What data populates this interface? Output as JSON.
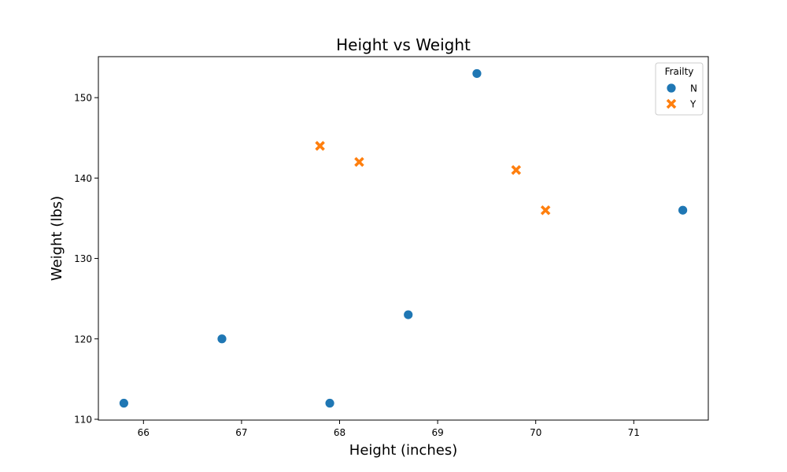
{
  "chart_data": {
    "type": "scatter",
    "title": "Height vs Weight",
    "xlabel": "Height (inches)",
    "ylabel": "Weight (lbs)",
    "xlim": [
      65.54,
      71.76
    ],
    "ylim": [
      109.9,
      155.1
    ],
    "xticks": [
      66,
      67,
      68,
      69,
      70,
      71
    ],
    "yticks": [
      110,
      120,
      130,
      140,
      150
    ],
    "grid": false,
    "legend": {
      "title": "Frailty",
      "placement": "top-right"
    },
    "series": [
      {
        "name": "N",
        "marker": "circle",
        "color": "#1f77b4",
        "points": [
          {
            "x": 65.8,
            "y": 112
          },
          {
            "x": 66.8,
            "y": 120
          },
          {
            "x": 67.9,
            "y": 112
          },
          {
            "x": 68.7,
            "y": 123
          },
          {
            "x": 69.4,
            "y": 153
          },
          {
            "x": 71.5,
            "y": 136
          }
        ]
      },
      {
        "name": "Y",
        "marker": "x",
        "color": "#ff7f0e",
        "points": [
          {
            "x": 67.8,
            "y": 144
          },
          {
            "x": 68.2,
            "y": 142
          },
          {
            "x": 69.8,
            "y": 141
          },
          {
            "x": 70.1,
            "y": 136
          }
        ]
      }
    ]
  }
}
